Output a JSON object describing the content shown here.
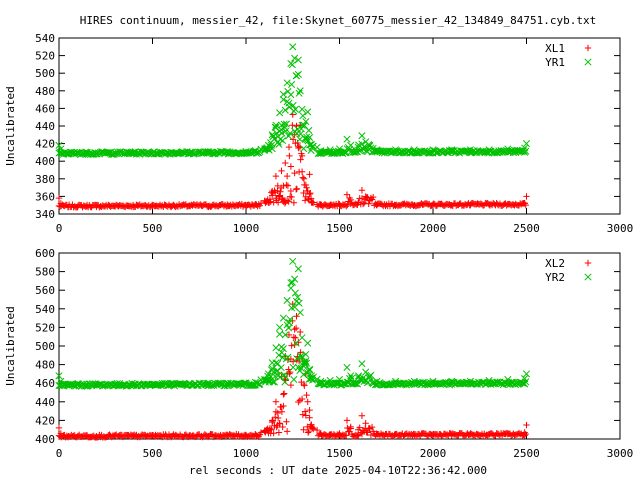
{
  "title": "HIRES continuum, messier_42, file:Skynet_60775_messier_42_134849_84751.cyb.txt",
  "xlabel": "rel seconds : UT date 2025-04-10T22:36:42.000",
  "colors": {
    "red": "#ff0000",
    "green": "#00c000"
  },
  "chart_data": [
    {
      "type": "scatter",
      "ylabel": "Uncalibrated",
      "xlim": [
        0,
        3000
      ],
      "ylim": [
        340,
        540
      ],
      "xticks": [
        0,
        500,
        1000,
        1500,
        2000,
        2500,
        3000
      ],
      "yticks": [
        340,
        360,
        380,
        400,
        420,
        440,
        460,
        480,
        500,
        520,
        540
      ],
      "legend_position": "top-right",
      "series": [
        {
          "name": "XL1",
          "marker": "plus",
          "color": "#ff0000",
          "baseline": 349,
          "x": [
            0,
            10,
            50,
            100,
            150,
            200,
            300,
            400,
            500,
            600,
            700,
            800,
            900,
            1000,
            1050,
            1100,
            1140,
            1160,
            1170,
            1180,
            1190,
            1200,
            1210,
            1220,
            1230,
            1240,
            1250,
            1260,
            1270,
            1280,
            1290,
            1300,
            1310,
            1320,
            1330,
            1340,
            1350,
            1400,
            1450,
            1500,
            1540,
            1560,
            1600,
            1620,
            1640,
            1660,
            1700,
            1800,
            1900,
            2000,
            2100,
            2200,
            2300,
            2400,
            2490,
            2500
          ],
          "y": [
            358,
            352,
            348,
            348,
            349,
            348,
            349,
            348,
            349,
            348,
            349,
            348,
            349,
            350,
            351,
            355,
            366,
            383,
            372,
            361,
            389,
            372,
            398,
            383,
            416,
            394,
            453,
            430,
            440,
            417,
            441,
            406,
            380,
            373,
            366,
            385,
            354,
            350,
            350,
            351,
            362,
            356,
            353,
            367,
            360,
            355,
            350,
            350,
            350,
            350,
            350,
            350,
            351,
            351,
            352,
            360
          ]
        },
        {
          "name": "YR1",
          "marker": "cross",
          "color": "#00c000",
          "baseline": 409,
          "x": [
            0,
            10,
            50,
            100,
            150,
            200,
            300,
            400,
            500,
            600,
            700,
            800,
            900,
            1000,
            1050,
            1100,
            1120,
            1140,
            1160,
            1170,
            1180,
            1190,
            1200,
            1210,
            1220,
            1230,
            1240,
            1250,
            1260,
            1270,
            1280,
            1290,
            1300,
            1310,
            1320,
            1330,
            1340,
            1350,
            1400,
            1450,
            1500,
            1540,
            1560,
            1600,
            1620,
            1640,
            1660,
            1700,
            1800,
            1900,
            2000,
            2100,
            2200,
            2300,
            2400,
            2490,
            2500
          ],
          "y": [
            418,
            414,
            409,
            409,
            410,
            409,
            409,
            410,
            409,
            410,
            409,
            410,
            411,
            411,
            412,
            414,
            418,
            430,
            441,
            428,
            455,
            441,
            476,
            458,
            489,
            466,
            511,
            530,
            517,
            497,
            515,
            480,
            459,
            441,
            445,
            456,
            427,
            419,
            412,
            413,
            414,
            425,
            418,
            416,
            429,
            422,
            418,
            413,
            413,
            413,
            413,
            413,
            413,
            413,
            414,
            415,
            420
          ]
        }
      ]
    },
    {
      "type": "scatter",
      "ylabel": "Uncalibrated",
      "xlim": [
        0,
        3000
      ],
      "ylim": [
        400,
        600
      ],
      "xticks": [
        0,
        500,
        1000,
        1500,
        2000,
        2500,
        3000
      ],
      "yticks": [
        400,
        420,
        440,
        460,
        480,
        500,
        520,
        540,
        560,
        580,
        600
      ],
      "legend_position": "top-right",
      "series": [
        {
          "name": "XL2",
          "marker": "plus",
          "color": "#ff0000",
          "baseline": 403,
          "x": [
            0,
            10,
            50,
            100,
            150,
            200,
            300,
            400,
            500,
            600,
            700,
            800,
            900,
            1000,
            1050,
            1100,
            1140,
            1160,
            1170,
            1180,
            1190,
            1200,
            1210,
            1220,
            1230,
            1240,
            1250,
            1260,
            1270,
            1280,
            1290,
            1300,
            1310,
            1320,
            1330,
            1340,
            1350,
            1400,
            1450,
            1500,
            1540,
            1560,
            1600,
            1620,
            1640,
            1660,
            1700,
            1800,
            1900,
            2000,
            2100,
            2200,
            2300,
            2400,
            2490,
            2500
          ],
          "y": [
            412,
            406,
            403,
            403,
            404,
            403,
            404,
            403,
            404,
            403,
            404,
            403,
            404,
            404,
            405,
            409,
            420,
            440,
            428,
            417,
            467,
            448,
            489,
            470,
            512,
            486,
            545,
            518,
            532,
            504,
            515,
            486,
            459,
            470,
            440,
            431,
            415,
            406,
            405,
            406,
            420,
            413,
            410,
            425,
            417,
            411,
            405,
            405,
            405,
            405,
            405,
            405,
            405,
            406,
            407,
            415
          ]
        },
        {
          "name": "YR2",
          "marker": "cross",
          "color": "#00c000",
          "baseline": 458,
          "x": [
            0,
            10,
            50,
            100,
            150,
            200,
            300,
            400,
            500,
            600,
            700,
            800,
            900,
            1000,
            1050,
            1100,
            1120,
            1140,
            1160,
            1170,
            1180,
            1190,
            1200,
            1210,
            1220,
            1230,
            1240,
            1250,
            1260,
            1270,
            1280,
            1290,
            1300,
            1310,
            1320,
            1330,
            1340,
            1350,
            1400,
            1450,
            1500,
            1540,
            1560,
            1600,
            1620,
            1640,
            1660,
            1700,
            1800,
            1900,
            2000,
            2100,
            2200,
            2300,
            2400,
            2490,
            2500
          ],
          "y": [
            468,
            462,
            458,
            458,
            459,
            458,
            459,
            458,
            459,
            458,
            459,
            460,
            460,
            460,
            461,
            464,
            470,
            482,
            498,
            481,
            520,
            499,
            530,
            512,
            549,
            525,
            568,
            591,
            572,
            548,
            583,
            536,
            509,
            483,
            491,
            503,
            475,
            468,
            462,
            463,
            464,
            477,
            468,
            466,
            481,
            472,
            467,
            462,
            462,
            462,
            462,
            462,
            462,
            463,
            464,
            465,
            470
          ]
        }
      ]
    }
  ]
}
